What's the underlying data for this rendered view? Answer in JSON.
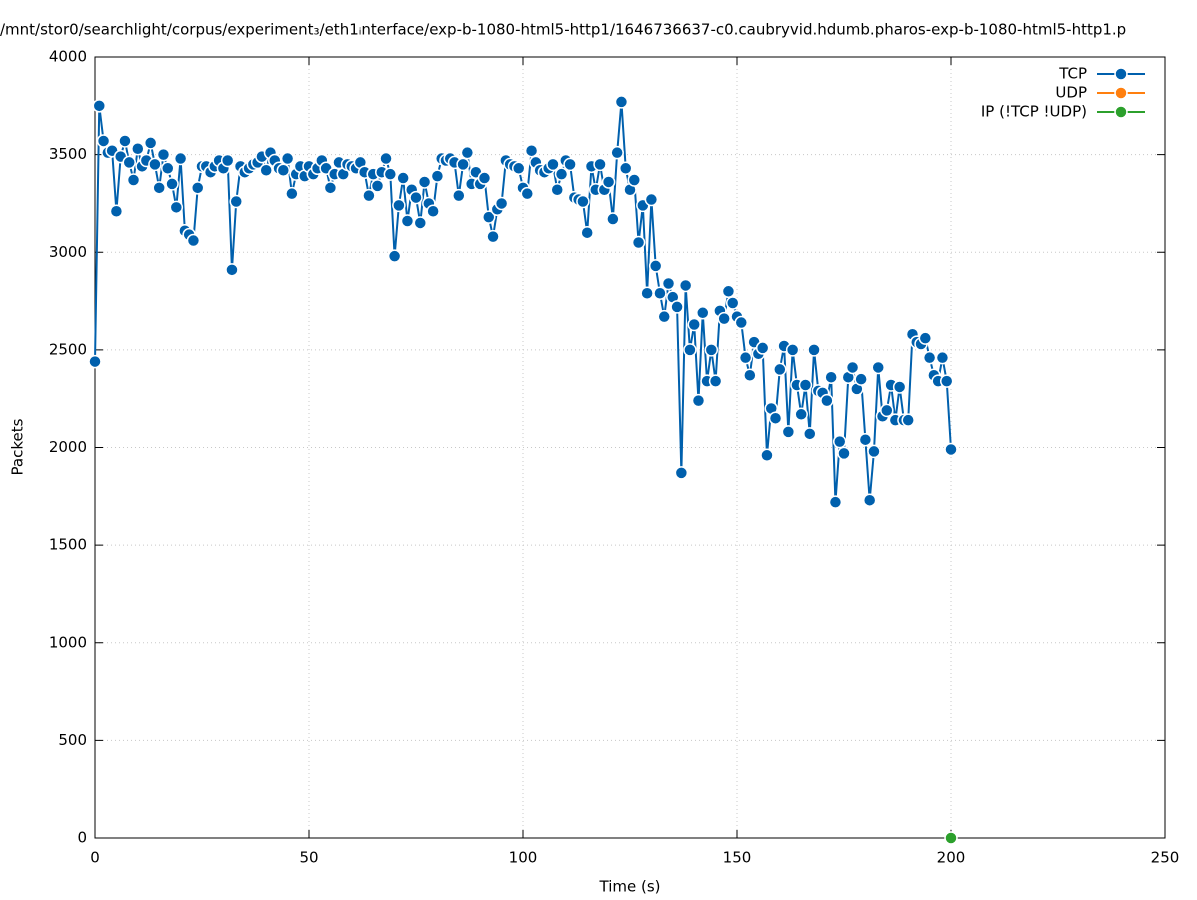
{
  "chart_data": {
    "type": "line",
    "title": "/mnt/stor0/searchlight/corpus/experiment₃/eth1ᵢnterface/exp-b-1080-html5-http1/1646736637-c0.caubryvid.hdumb.pharos-exp-b-1080-html5-http1.p",
    "xlabel": "Time (s)",
    "ylabel": "Packets",
    "xlim": [
      0,
      250
    ],
    "xticks": [
      0,
      50,
      100,
      150,
      200,
      250
    ],
    "ylim": [
      0,
      4000
    ],
    "yticks": [
      0,
      500,
      1000,
      1500,
      2000,
      2500,
      3000,
      3500,
      4000
    ],
    "grid": true,
    "legend": "top-right",
    "series": [
      {
        "name": "TCP",
        "color": "#0060ad",
        "x": [
          0,
          1,
          2,
          3,
          4,
          5,
          6,
          7,
          8,
          9,
          10,
          11,
          12,
          13,
          14,
          15,
          16,
          17,
          18,
          19,
          20,
          21,
          22,
          23,
          24,
          25,
          26,
          27,
          28,
          29,
          30,
          31,
          32,
          33,
          34,
          35,
          36,
          37,
          38,
          39,
          40,
          41,
          42,
          43,
          44,
          45,
          46,
          47,
          48,
          49,
          50,
          51,
          52,
          53,
          54,
          55,
          56,
          57,
          58,
          59,
          60,
          61,
          62,
          63,
          64,
          65,
          66,
          67,
          68,
          69,
          70,
          71,
          72,
          73,
          74,
          75,
          76,
          77,
          78,
          79,
          80,
          81,
          82,
          83,
          84,
          85,
          86,
          87,
          88,
          89,
          90,
          91,
          92,
          93,
          94,
          95,
          96,
          97,
          98,
          99,
          100,
          101,
          102,
          103,
          104,
          105,
          106,
          107,
          108,
          109,
          110,
          111,
          112,
          113,
          114,
          115,
          116,
          117,
          118,
          119,
          120,
          121,
          122,
          123,
          124,
          125,
          126,
          127,
          128,
          129,
          130,
          131,
          132,
          133,
          134,
          135,
          136,
          137,
          138,
          139,
          140,
          141,
          142,
          143,
          144,
          145,
          146,
          147,
          148,
          149,
          150,
          151,
          152,
          153,
          154,
          155,
          156,
          157,
          158,
          159,
          160,
          161,
          162,
          163,
          164,
          165,
          166,
          167,
          168,
          169,
          170,
          171,
          172,
          173,
          174,
          175,
          176,
          177,
          178,
          179,
          180,
          181,
          182,
          183,
          184,
          185,
          186,
          187,
          188,
          189,
          190,
          191,
          192,
          193,
          194,
          195,
          196,
          197,
          198,
          199,
          200
        ],
        "values": [
          2440,
          3750,
          3570,
          3510,
          3520,
          3210,
          3490,
          3570,
          3460,
          3370,
          3530,
          3440,
          3470,
          3560,
          3450,
          3330,
          3500,
          3430,
          3350,
          3230,
          3480,
          3110,
          3090,
          3060,
          3330,
          3440,
          3440,
          3410,
          3440,
          3470,
          3430,
          3470,
          2910,
          3260,
          3440,
          3410,
          3430,
          3450,
          3460,
          3490,
          3420,
          3510,
          3470,
          3430,
          3420,
          3480,
          3300,
          3400,
          3440,
          3390,
          3440,
          3400,
          3430,
          3470,
          3430,
          3330,
          3400,
          3460,
          3400,
          3450,
          3440,
          3430,
          3460,
          3410,
          3290,
          3400,
          3340,
          3410,
          3480,
          3400,
          2980,
          3240,
          3380,
          3160,
          3320,
          3280,
          3150,
          3360,
          3250,
          3210,
          3390,
          3480,
          3470,
          3480,
          3460,
          3290,
          3450,
          3510,
          3350,
          3410,
          3350,
          3380,
          3180,
          3080,
          3220,
          3250,
          3470,
          3450,
          3440,
          3430,
          3330,
          3300,
          3520,
          3460,
          3420,
          3410,
          3430,
          3450,
          3320,
          3400,
          3470,
          3450,
          3280,
          3270,
          3260,
          3100,
          3440,
          3320,
          3450,
          3320,
          3360,
          3170,
          3510,
          3770,
          3430,
          3320,
          3370,
          3050,
          3240,
          2790,
          3270,
          2930,
          2790,
          2670,
          2840,
          2770,
          2720,
          1870,
          2830,
          2500,
          2630,
          2240,
          2690,
          2340,
          2500,
          2340,
          2700,
          2660,
          2800,
          2740,
          2670,
          2640,
          2460,
          2370,
          2540,
          2480,
          2510,
          1960,
          2200,
          2150,
          2400,
          2520,
          2080,
          2500,
          2320,
          2170,
          2320,
          2070,
          2500,
          2290,
          2280,
          2240,
          2360,
          1720,
          2030,
          1970,
          2360,
          2410,
          2300,
          2350,
          2040,
          1730,
          1980,
          2410,
          2160,
          2190,
          2320,
          2140,
          2310,
          2140,
          2140,
          2580,
          2540,
          2530,
          2560,
          2460,
          2370,
          2340,
          2460,
          2340,
          1990
        ]
      },
      {
        "name": "UDP",
        "color": "#ff7f0e",
        "x": [],
        "values": []
      },
      {
        "name": "IP (!TCP  !UDP)",
        "color": "#2ca02c",
        "x": [
          200
        ],
        "values": [
          0
        ]
      }
    ]
  }
}
